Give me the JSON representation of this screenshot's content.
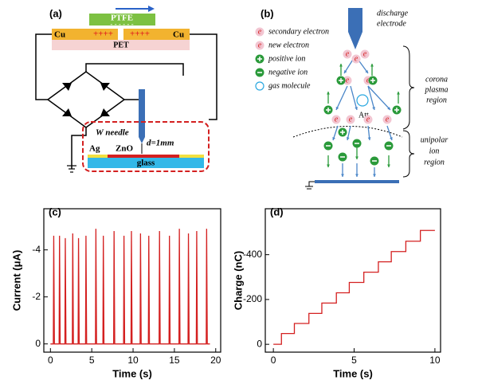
{
  "panel_a": {
    "label": "(a)",
    "ptfe": "PTFE",
    "cu_left": "Cu",
    "cu_right": "Cu",
    "pet": "PET",
    "charges_left": "++++",
    "charges_right": "++++",
    "needle": "W needle",
    "gap": "d=1mm",
    "ag": "Ag",
    "zno": "ZnO",
    "glass": "glass"
  },
  "panel_b": {
    "label": "(b)",
    "electrode": [
      "discharge",
      "electrode"
    ],
    "electron_symbol": "e",
    "legend": [
      "secondary electron",
      "new electron",
      "positive ion",
      "negative ion",
      "gas molecule"
    ],
    "att": "Att.",
    "corona_region": [
      "corona",
      "plasma",
      "region"
    ],
    "unipolar_region": [
      "unipolar",
      "ion",
      "region"
    ]
  },
  "chart_data": [
    {
      "type": "line",
      "panel_label": "(c)",
      "xlabel": "Time (s)",
      "ylabel": "Current (μA)",
      "color": "#d42020",
      "xlim": [
        -0.8,
        20.6
      ],
      "xticks": [
        0,
        5,
        10,
        15,
        20
      ],
      "ylim": [
        0.35,
        -5.75
      ],
      "yticks": [
        0,
        -2,
        -4
      ],
      "x": [
        0,
        0.35,
        0.4,
        0.48,
        1.05,
        1.1,
        1.18,
        1.75,
        1.8,
        1.88,
        2.65,
        2.7,
        2.78,
        3.35,
        3.4,
        3.48,
        4.25,
        4.3,
        4.38,
        5.45,
        5.5,
        5.58,
        6.35,
        6.4,
        6.48,
        7.65,
        7.7,
        7.78,
        8.85,
        8.9,
        8.98,
        9.75,
        9.8,
        9.88,
        10.85,
        10.9,
        10.98,
        11.85,
        11.9,
        11.98,
        13.15,
        13.2,
        13.28,
        14.35,
        14.4,
        14.48,
        15.55,
        15.6,
        15.68,
        16.65,
        16.7,
        16.78,
        17.65,
        17.7,
        17.78,
        18.85,
        18.9,
        18.98,
        19.3
      ],
      "values": [
        0,
        0,
        -4.6,
        0,
        0,
        -4.6,
        0,
        0,
        -4.5,
        0,
        0,
        -4.7,
        0,
        0,
        -4.5,
        0,
        0,
        -4.6,
        0,
        0,
        -4.9,
        0,
        0,
        -4.6,
        0,
        0,
        -4.8,
        0,
        0,
        -4.6,
        0,
        0,
        -4.8,
        0,
        0,
        -4.7,
        0,
        0,
        -4.6,
        0,
        0,
        -4.8,
        0,
        0,
        -4.6,
        0,
        0,
        -4.9,
        0,
        0,
        -4.7,
        0,
        0,
        -4.8,
        0,
        0,
        -4.9,
        0,
        0
      ]
    },
    {
      "type": "line",
      "panel_label": "(d)",
      "xlabel": "Time (s)",
      "ylabel": "Charge (nC)",
      "color": "#d42020",
      "xlim": [
        -0.5,
        10.35
      ],
      "xticks": [
        0,
        5,
        10
      ],
      "ylim": [
        35,
        -605
      ],
      "yticks": [
        0,
        -200,
        -400
      ],
      "x": [
        0,
        0.5,
        0.5,
        1.3,
        1.3,
        2.2,
        2.2,
        3.0,
        3.0,
        3.9,
        3.9,
        4.7,
        4.7,
        5.6,
        5.6,
        6.5,
        6.5,
        7.3,
        7.3,
        8.2,
        8.2,
        9.1,
        9.1,
        10.0
      ],
      "values": [
        0,
        0,
        -48,
        -48,
        -93,
        -93,
        -138,
        -138,
        -184,
        -184,
        -230,
        -230,
        -276,
        -276,
        -322,
        -322,
        -368,
        -368,
        -414,
        -414,
        -460,
        -460,
        -508,
        -508
      ]
    }
  ]
}
